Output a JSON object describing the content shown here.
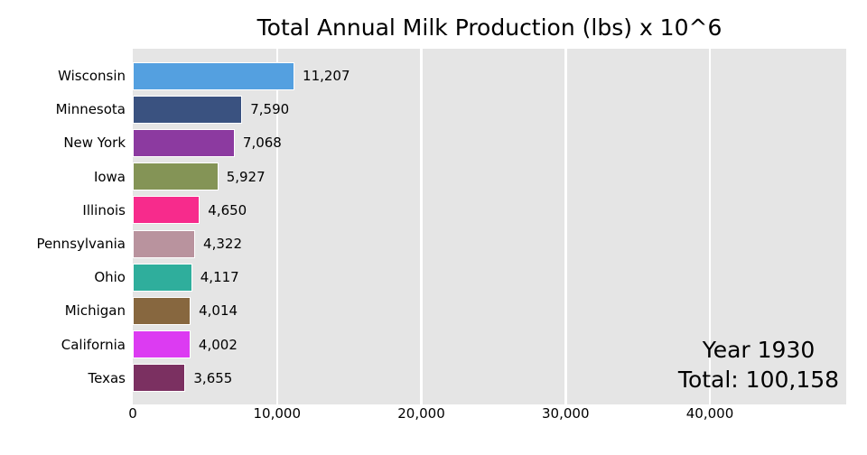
{
  "title": "Total Annual Milk Production (lbs) x 10^6",
  "annotations": {
    "year": "Year 1930",
    "total": "Total: 100,158"
  },
  "chart_data": {
    "type": "bar",
    "orientation": "horizontal",
    "title": "Total Annual Milk Production (lbs) x 10^6",
    "categories": [
      "Wisconsin",
      "Minnesota",
      "New York",
      "Iowa",
      "Illinois",
      "Pennsylvania",
      "Ohio",
      "Michigan",
      "California",
      "Texas"
    ],
    "values": [
      11207,
      7590,
      7068,
      5927,
      4650,
      4322,
      4117,
      4014,
      4002,
      3655
    ],
    "value_labels": [
      "11,207",
      "7,590",
      "7,068",
      "5,927",
      "4,650",
      "4,322",
      "4,117",
      "4,014",
      "4,002",
      "3,655"
    ],
    "bar_colors": [
      "#54A0E0",
      "#3A5280",
      "#8C3AA0",
      "#849456",
      "#F72B8C",
      "#B9939E",
      "#2FAE9C",
      "#87673F",
      "#DC3BF2",
      "#7B3061"
    ],
    "bar_edge_color": "#FFFFFF",
    "plot_background": "#E5E5E5",
    "grid": "vertical-white-lines",
    "xlabel": "",
    "ylabel": "",
    "xlim": [
      0,
      49450
    ],
    "x_tick_values": [
      0,
      10000,
      20000,
      30000,
      40000
    ],
    "x_tick_labels": [
      "0",
      "10,000",
      "20,000",
      "30,000",
      "40,000"
    ],
    "annotations": [
      "Year 1930",
      "Total: 100,158"
    ],
    "legend": "none"
  }
}
